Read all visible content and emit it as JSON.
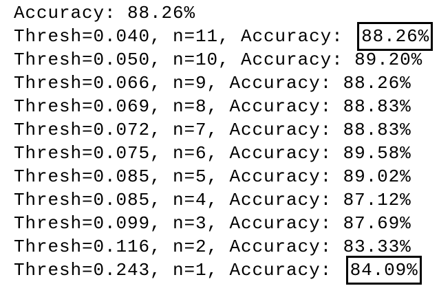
{
  "lines": [
    {
      "text": "Accuracy: ",
      "accuracy": "88.26%",
      "highlighted": false
    },
    {
      "text": "Thresh=0.040, n=11, Accuracy: ",
      "accuracy": "88.26%",
      "highlighted": true
    },
    {
      "text": "Thresh=0.050, n=10, Accuracy: ",
      "accuracy": "89.20%",
      "highlighted": false
    },
    {
      "text": "Thresh=0.066, n=9, Accuracy: ",
      "accuracy": "88.26%",
      "highlighted": false
    },
    {
      "text": "Thresh=0.069, n=8, Accuracy: ",
      "accuracy": "88.83%",
      "highlighted": false
    },
    {
      "text": "Thresh=0.072, n=7, Accuracy: ",
      "accuracy": "88.83%",
      "highlighted": false
    },
    {
      "text": "Thresh=0.075, n=6, Accuracy: ",
      "accuracy": "89.58%",
      "highlighted": false
    },
    {
      "text": "Thresh=0.085, n=5, Accuracy: ",
      "accuracy": "89.02%",
      "highlighted": false
    },
    {
      "text": "Thresh=0.085, n=4, Accuracy: ",
      "accuracy": "87.12%",
      "highlighted": false
    },
    {
      "text": "Thresh=0.099, n=3, Accuracy: ",
      "accuracy": "87.69%",
      "highlighted": false
    },
    {
      "text": "Thresh=0.116, n=2, Accuracy: ",
      "accuracy": "83.33%",
      "highlighted": false
    },
    {
      "text": "Thresh=0.243, n=1, Accuracy: ",
      "accuracy": "84.09%",
      "highlighted": true
    }
  ]
}
